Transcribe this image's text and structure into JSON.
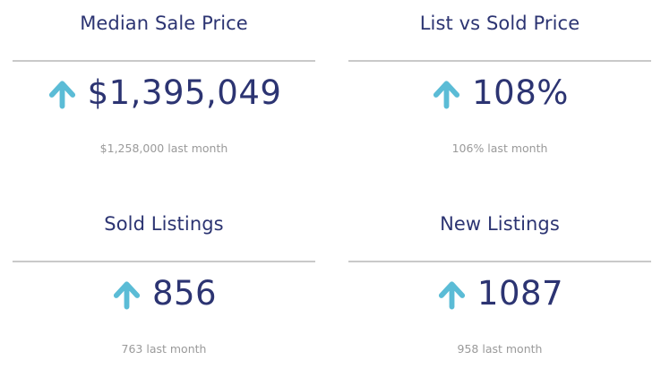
{
  "cards": [
    {
      "title": "Median Sale Price",
      "value": "$1,395,049",
      "trend_icon": "arrow-up-icon",
      "sub": "$1,258,000 last month"
    },
    {
      "title": "List vs Sold Price",
      "value": "108%",
      "trend_icon": "arrow-up-icon",
      "sub": "106% last month"
    },
    {
      "title": "Sold Listings",
      "value": "856",
      "trend_icon": "arrow-up-icon",
      "sub": "763 last month"
    },
    {
      "title": "New Listings",
      "value": "1087",
      "trend_icon": "arrow-up-icon",
      "sub": "958 last month"
    }
  ],
  "colors": {
    "title": "#2c3472",
    "value": "#2c3472",
    "arrow": "#5bbcd6",
    "subtext": "#9a9a9a",
    "divider": "#c9c9c9"
  }
}
